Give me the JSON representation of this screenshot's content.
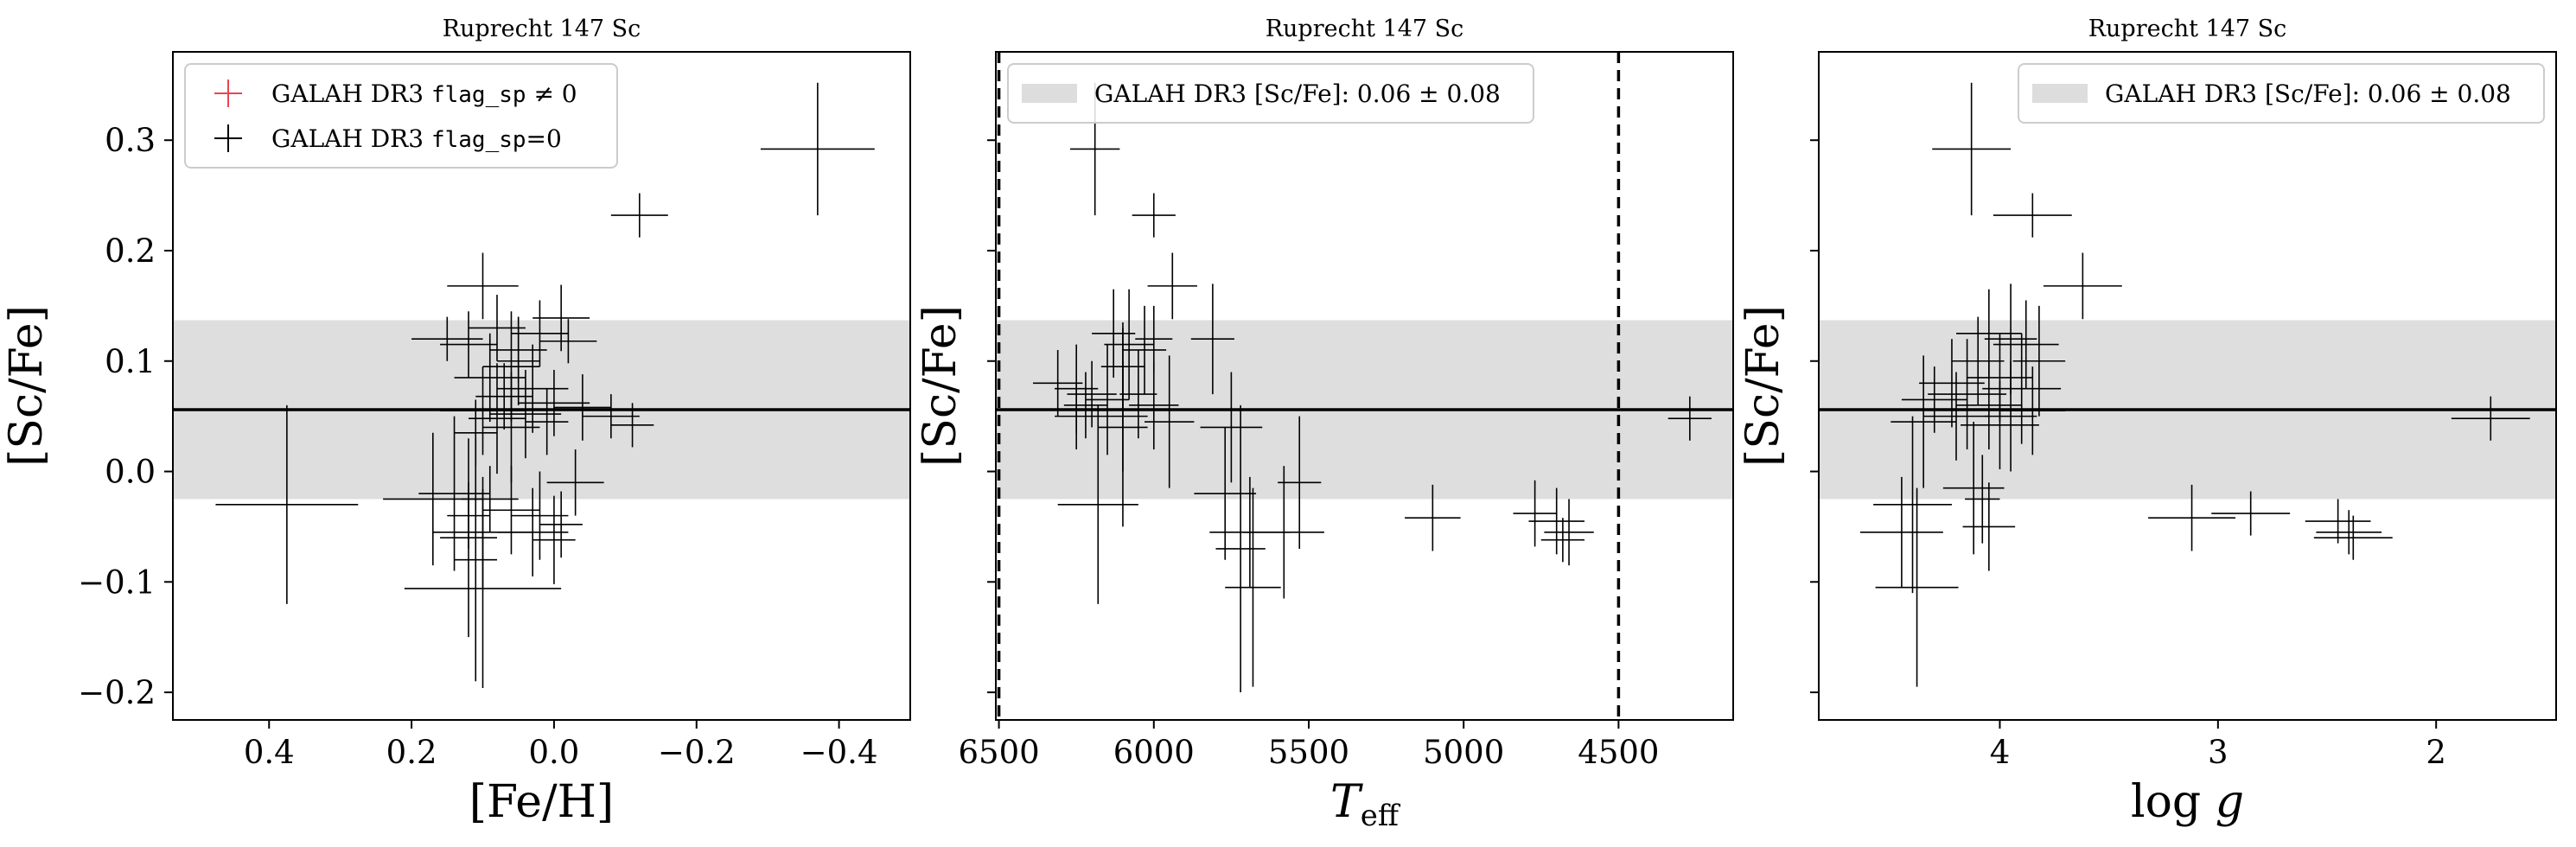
{
  "chart_data": [
    {
      "type": "scatter",
      "title": "Ruprecht 147 Sc",
      "xlabel": "[Fe/H]",
      "ylabel": "[Sc/Fe]",
      "xlim": [
        0.535,
        -0.5
      ],
      "ylim": [
        -0.225,
        0.38
      ],
      "x_inverted": true,
      "xticks": [
        {
          "v": 0.4,
          "label": "0.4"
        },
        {
          "v": 0.2,
          "label": "0.2"
        },
        {
          "v": 0.0,
          "label": "0.0"
        },
        {
          "v": -0.2,
          "label": "−0.2"
        },
        {
          "v": -0.4,
          "label": "−0.4"
        }
      ],
      "yticks": [
        {
          "v": -0.2,
          "label": "−0.2"
        },
        {
          "v": -0.1,
          "label": "−0.1"
        },
        {
          "v": 0.0,
          "label": "0.0"
        },
        {
          "v": 0.1,
          "label": "0.1"
        },
        {
          "v": 0.2,
          "label": "0.2"
        },
        {
          "v": 0.3,
          "label": "0.3"
        }
      ],
      "ytick_labels_shown": true,
      "band": {
        "center": 0.056,
        "lower": -0.025,
        "upper": 0.137
      },
      "hline": 0.056,
      "vlines": [],
      "legend": {
        "position": "top-left",
        "entries": [
          {
            "label": "GALAH DR3 flag_sp ≠ 0",
            "marker": "plus",
            "color": "#e8474f"
          },
          {
            "label": "GALAH DR3 flag_sp=0",
            "marker": "plus",
            "color": "#000000"
          }
        ]
      },
      "series": [
        {
          "name": "GALAH DR3 flag_sp=0",
          "color": "#000000",
          "points": [
            {
              "x": -0.37,
              "y": 0.292,
              "xerr": 0.08,
              "yerr": 0.06
            },
            {
              "x": -0.12,
              "y": 0.232,
              "xerr": 0.04,
              "yerr": 0.02
            },
            {
              "x": 0.1,
              "y": 0.168,
              "xerr": 0.05,
              "yerr": 0.03
            },
            {
              "x": 0.375,
              "y": -0.03,
              "xerr": 0.1,
              "yerr": 0.09
            },
            {
              "x": 0.1,
              "y": -0.106,
              "xerr": 0.11,
              "yerr": 0.09
            },
            {
              "x": 0.15,
              "y": 0.12,
              "xerr": 0.05,
              "yerr": 0.02
            },
            {
              "x": 0.12,
              "y": 0.115,
              "xerr": 0.04,
              "yerr": 0.03
            },
            {
              "x": 0.08,
              "y": 0.13,
              "xerr": 0.04,
              "yerr": 0.03
            },
            {
              "x": 0.05,
              "y": 0.11,
              "xerr": 0.04,
              "yerr": 0.03
            },
            {
              "x": 0.02,
              "y": 0.125,
              "xerr": 0.04,
              "yerr": 0.03
            },
            {
              "x": -0.02,
              "y": 0.118,
              "xerr": 0.04,
              "yerr": 0.02
            },
            {
              "x": 0.06,
              "y": 0.095,
              "xerr": 0.04,
              "yerr": 0.05
            },
            {
              "x": -0.01,
              "y": 0.139,
              "xerr": 0.04,
              "yerr": 0.03
            },
            {
              "x": 0.09,
              "y": 0.085,
              "xerr": 0.05,
              "yerr": 0.04
            },
            {
              "x": 0.03,
              "y": 0.075,
              "xerr": 0.05,
              "yerr": 0.04
            },
            {
              "x": 0.07,
              "y": 0.068,
              "xerr": 0.04,
              "yerr": 0.03
            },
            {
              "x": 0.0,
              "y": 0.062,
              "xerr": 0.05,
              "yerr": 0.03
            },
            {
              "x": 0.1,
              "y": 0.055,
              "xerr": 0.06,
              "yerr": 0.04
            },
            {
              "x": -0.04,
              "y": 0.058,
              "xerr": 0.04,
              "yerr": 0.03
            },
            {
              "x": 0.04,
              "y": 0.052,
              "xerr": 0.05,
              "yerr": 0.04
            },
            {
              "x": 0.08,
              "y": 0.048,
              "xerr": 0.04,
              "yerr": 0.05
            },
            {
              "x": -0.08,
              "y": 0.05,
              "xerr": 0.04,
              "yerr": 0.02
            },
            {
              "x": 0.01,
              "y": 0.045,
              "xerr": 0.03,
              "yerr": 0.03
            },
            {
              "x": -0.11,
              "y": 0.042,
              "xerr": 0.03,
              "yerr": 0.02
            },
            {
              "x": 0.11,
              "y": 0.035,
              "xerr": 0.03,
              "yerr": 0.03
            },
            {
              "x": 0.06,
              "y": 0.04,
              "xerr": 0.04,
              "yerr": 0.05
            },
            {
              "x": -0.03,
              "y": -0.01,
              "xerr": 0.04,
              "yerr": 0.03
            },
            {
              "x": 0.17,
              "y": -0.025,
              "xerr": 0.07,
              "yerr": 0.06
            },
            {
              "x": 0.09,
              "y": -0.025,
              "xerr": 0.04,
              "yerr": 0.03
            },
            {
              "x": 0.12,
              "y": -0.04,
              "xerr": 0.03,
              "yerr": 0.03
            },
            {
              "x": 0.06,
              "y": -0.035,
              "xerr": 0.04,
              "yerr": 0.04
            },
            {
              "x": 0.02,
              "y": -0.04,
              "xerr": 0.04,
              "yerr": 0.04
            },
            {
              "x": -0.01,
              "y": -0.048,
              "xerr": 0.03,
              "yerr": 0.03
            },
            {
              "x": 0.03,
              "y": -0.055,
              "xerr": 0.05,
              "yerr": 0.04
            },
            {
              "x": 0.1,
              "y": -0.055,
              "xerr": 0.07,
              "yerr": 0.05
            },
            {
              "x": 0.0,
              "y": -0.062,
              "xerr": 0.03,
              "yerr": 0.04
            },
            {
              "x": 0.14,
              "y": -0.02,
              "xerr": 0.05,
              "yerr": 0.07
            },
            {
              "x": 0.12,
              "y": -0.06,
              "xerr": 0.04,
              "yerr": 0.09
            },
            {
              "x": 0.11,
              "y": -0.08,
              "xerr": 0.03,
              "yerr": 0.11
            },
            {
              "x": 0.05,
              "y": 0.1,
              "xerr": 0.03,
              "yerr": 0.04
            }
          ]
        }
      ]
    },
    {
      "type": "scatter",
      "title": "Ruprecht 147 Sc",
      "xlabel": "Teff",
      "ylabel": "[Sc/Fe]",
      "xlim": [
        6510,
        4130
      ],
      "ylim": [
        -0.225,
        0.38
      ],
      "x_inverted": true,
      "xticks": [
        {
          "v": 6500,
          "label": "6500"
        },
        {
          "v": 6000,
          "label": "6000"
        },
        {
          "v": 5500,
          "label": "5500"
        },
        {
          "v": 5000,
          "label": "5000"
        },
        {
          "v": 4500,
          "label": "4500"
        }
      ],
      "yticks": [
        {
          "v": -0.2,
          "label": ""
        },
        {
          "v": -0.1,
          "label": ""
        },
        {
          "v": 0.0,
          "label": ""
        },
        {
          "v": 0.1,
          "label": ""
        },
        {
          "v": 0.2,
          "label": ""
        },
        {
          "v": 0.3,
          "label": ""
        }
      ],
      "ytick_labels_shown": false,
      "band": {
        "center": 0.056,
        "lower": -0.025,
        "upper": 0.137
      },
      "hline": 0.056,
      "vlines": [
        6500,
        4500
      ],
      "legend": {
        "position": "top-left",
        "entries": [
          {
            "label": "GALAH DR3 [Sc/Fe]: 0.06 ± 0.08",
            "marker": "patch",
            "color": "#dddddd"
          }
        ]
      },
      "series": [
        {
          "name": "",
          "color": "#000000",
          "points": [
            {
              "x": 6190,
              "y": 0.292,
              "xerr": 80,
              "yerr": 0.06
            },
            {
              "x": 6000,
              "y": 0.232,
              "xerr": 70,
              "yerr": 0.02
            },
            {
              "x": 5940,
              "y": 0.168,
              "xerr": 80,
              "yerr": 0.03
            },
            {
              "x": 5810,
              "y": 0.12,
              "xerr": 70,
              "yerr": 0.05
            },
            {
              "x": 6130,
              "y": 0.125,
              "xerr": 70,
              "yerr": 0.04
            },
            {
              "x": 6080,
              "y": 0.115,
              "xerr": 80,
              "yerr": 0.05
            },
            {
              "x": 6030,
              "y": 0.11,
              "xerr": 70,
              "yerr": 0.04
            },
            {
              "x": 6000,
              "y": 0.12,
              "xerr": 60,
              "yerr": 0.03
            },
            {
              "x": 6100,
              "y": 0.095,
              "xerr": 70,
              "yerr": 0.04
            },
            {
              "x": 6310,
              "y": 0.08,
              "xerr": 80,
              "yerr": 0.03
            },
            {
              "x": 6250,
              "y": 0.075,
              "xerr": 70,
              "yerr": 0.04
            },
            {
              "x": 6200,
              "y": 0.07,
              "xerr": 80,
              "yerr": 0.03
            },
            {
              "x": 6150,
              "y": 0.065,
              "xerr": 70,
              "yerr": 0.05
            },
            {
              "x": 6050,
              "y": 0.07,
              "xerr": 60,
              "yerr": 0.04
            },
            {
              "x": 6220,
              "y": 0.06,
              "xerr": 70,
              "yerr": 0.03
            },
            {
              "x": 6000,
              "y": 0.06,
              "xerr": 80,
              "yerr": 0.04
            },
            {
              "x": 6250,
              "y": 0.05,
              "xerr": 70,
              "yerr": 0.03
            },
            {
              "x": 6100,
              "y": 0.05,
              "xerr": 80,
              "yerr": 0.05
            },
            {
              "x": 6180,
              "y": -0.03,
              "xerr": 130,
              "yerr": 0.09
            },
            {
              "x": 6100,
              "y": 0.04,
              "xerr": 80,
              "yerr": 0.09
            },
            {
              "x": 5950,
              "y": 0.045,
              "xerr": 80,
              "yerr": 0.06
            },
            {
              "x": 5750,
              "y": 0.04,
              "xerr": 100,
              "yerr": 0.05
            },
            {
              "x": 5770,
              "y": -0.02,
              "xerr": 100,
              "yerr": 0.06
            },
            {
              "x": 5690,
              "y": -0.055,
              "xerr": 130,
              "yerr": 0.05
            },
            {
              "x": 5580,
              "y": -0.055,
              "xerr": 130,
              "yerr": 0.06
            },
            {
              "x": 5720,
              "y": -0.07,
              "xerr": 80,
              "yerr": 0.13
            },
            {
              "x": 5680,
              "y": -0.105,
              "xerr": 90,
              "yerr": 0.09
            },
            {
              "x": 5530,
              "y": -0.01,
              "xerr": 70,
              "yerr": 0.06
            },
            {
              "x": 5100,
              "y": -0.042,
              "xerr": 90,
              "yerr": 0.03
            },
            {
              "x": 4770,
              "y": -0.038,
              "xerr": 70,
              "yerr": 0.03
            },
            {
              "x": 4700,
              "y": -0.045,
              "xerr": 90,
              "yerr": 0.03
            },
            {
              "x": 4660,
              "y": -0.055,
              "xerr": 80,
              "yerr": 0.03
            },
            {
              "x": 4680,
              "y": -0.062,
              "xerr": 70,
              "yerr": 0.02
            },
            {
              "x": 4270,
              "y": 0.048,
              "xerr": 70,
              "yerr": 0.02
            }
          ]
        }
      ]
    },
    {
      "type": "scatter",
      "title": "Ruprecht 147 Sc",
      "xlabel": "log g",
      "ylabel": "[Sc/Fe]",
      "xlim": [
        4.83,
        1.45
      ],
      "ylim": [
        -0.225,
        0.38
      ],
      "x_inverted": true,
      "xticks": [
        {
          "v": 4,
          "label": "4"
        },
        {
          "v": 3,
          "label": "3"
        },
        {
          "v": 2,
          "label": "2"
        }
      ],
      "yticks": [
        {
          "v": -0.2,
          "label": ""
        },
        {
          "v": -0.1,
          "label": ""
        },
        {
          "v": 0.0,
          "label": ""
        },
        {
          "v": 0.1,
          "label": ""
        },
        {
          "v": 0.2,
          "label": ""
        },
        {
          "v": 0.3,
          "label": ""
        }
      ],
      "ytick_labels_shown": false,
      "band": {
        "center": 0.056,
        "lower": -0.025,
        "upper": 0.137
      },
      "hline": 0.056,
      "vlines": [],
      "legend": {
        "position": "top-right",
        "entries": [
          {
            "label": "GALAH DR3 [Sc/Fe]: 0.06 ± 0.08",
            "marker": "patch",
            "color": "#dddddd"
          }
        ]
      },
      "series": [
        {
          "name": "",
          "color": "#000000",
          "points": [
            {
              "x": 4.13,
              "y": 0.292,
              "xerr": 0.18,
              "yerr": 0.06
            },
            {
              "x": 3.85,
              "y": 0.232,
              "xerr": 0.18,
              "yerr": 0.02
            },
            {
              "x": 3.62,
              "y": 0.168,
              "xerr": 0.18,
              "yerr": 0.03
            },
            {
              "x": 4.05,
              "y": 0.125,
              "xerr": 0.15,
              "yerr": 0.04
            },
            {
              "x": 3.95,
              "y": 0.12,
              "xerr": 0.12,
              "yerr": 0.05
            },
            {
              "x": 3.88,
              "y": 0.115,
              "xerr": 0.15,
              "yerr": 0.04
            },
            {
              "x": 3.82,
              "y": 0.1,
              "xerr": 0.12,
              "yerr": 0.05
            },
            {
              "x": 4.1,
              "y": 0.1,
              "xerr": 0.12,
              "yerr": 0.04
            },
            {
              "x": 4.22,
              "y": 0.08,
              "xerr": 0.15,
              "yerr": 0.04
            },
            {
              "x": 4.0,
              "y": 0.085,
              "xerr": 0.15,
              "yerr": 0.04
            },
            {
              "x": 3.9,
              "y": 0.075,
              "xerr": 0.18,
              "yerr": 0.05
            },
            {
              "x": 4.15,
              "y": 0.07,
              "xerr": 0.18,
              "yerr": 0.05
            },
            {
              "x": 4.3,
              "y": 0.065,
              "xerr": 0.15,
              "yerr": 0.03
            },
            {
              "x": 4.05,
              "y": 0.06,
              "xerr": 0.15,
              "yerr": 0.04
            },
            {
              "x": 3.85,
              "y": 0.055,
              "xerr": 0.15,
              "yerr": 0.04
            },
            {
              "x": 4.2,
              "y": 0.05,
              "xerr": 0.15,
              "yerr": 0.04
            },
            {
              "x": 4.35,
              "y": 0.045,
              "xerr": 0.15,
              "yerr": 0.06
            },
            {
              "x": 3.95,
              "y": 0.05,
              "xerr": 0.12,
              "yerr": 0.05
            },
            {
              "x": 4.0,
              "y": 0.042,
              "xerr": 0.18,
              "yerr": 0.04
            },
            {
              "x": 4.4,
              "y": -0.03,
              "xerr": 0.18,
              "yerr": 0.08
            },
            {
              "x": 4.45,
              "y": -0.055,
              "xerr": 0.19,
              "yerr": 0.05
            },
            {
              "x": 4.38,
              "y": -0.105,
              "xerr": 0.19,
              "yerr": 0.09
            },
            {
              "x": 4.12,
              "y": -0.015,
              "xerr": 0.14,
              "yerr": 0.06
            },
            {
              "x": 4.05,
              "y": -0.05,
              "xerr": 0.12,
              "yerr": 0.04
            },
            {
              "x": 4.08,
              "y": -0.025,
              "xerr": 0.08,
              "yerr": 0.04
            },
            {
              "x": 3.12,
              "y": -0.042,
              "xerr": 0.2,
              "yerr": 0.03
            },
            {
              "x": 2.85,
              "y": -0.038,
              "xerr": 0.18,
              "yerr": 0.02
            },
            {
              "x": 2.45,
              "y": -0.045,
              "xerr": 0.15,
              "yerr": 0.02
            },
            {
              "x": 2.4,
              "y": -0.055,
              "xerr": 0.15,
              "yerr": 0.02
            },
            {
              "x": 2.38,
              "y": -0.06,
              "xerr": 0.18,
              "yerr": 0.02
            },
            {
              "x": 1.75,
              "y": 0.048,
              "xerr": 0.18,
              "yerr": 0.02
            }
          ]
        }
      ]
    }
  ]
}
